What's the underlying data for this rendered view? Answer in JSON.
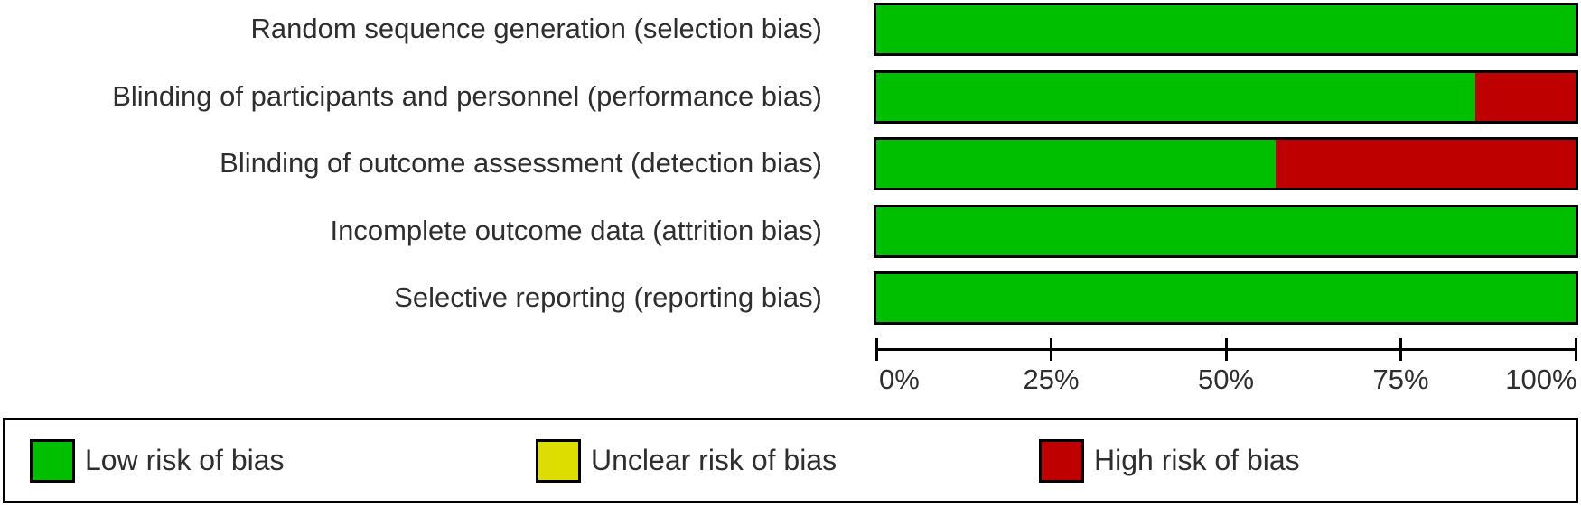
{
  "chart_data": {
    "type": "bar",
    "variant": "horizontal-stacked",
    "title": "",
    "categories": [
      "Random sequence generation (selection bias)",
      "Blinding of participants and personnel (performance bias)",
      "Blinding of outcome assessment (detection bias)",
      "Incomplete outcome data (attrition bias)",
      "Selective reporting (reporting bias)"
    ],
    "series": [
      {
        "key": "low",
        "name": "Low risk of bias",
        "color": "#00BE00",
        "values": [
          100,
          85.7,
          57.1,
          100,
          100
        ]
      },
      {
        "key": "unclear",
        "name": "Unclear risk of bias",
        "color": "#DDDD00",
        "values": [
          0,
          0,
          0,
          0,
          0
        ]
      },
      {
        "key": "high",
        "name": "High risk of bias",
        "color": "#BE0000",
        "values": [
          0,
          14.3,
          42.9,
          0,
          0
        ]
      }
    ],
    "xlabel": "",
    "ylabel": "",
    "xlim": [
      0,
      100
    ],
    "x_ticks": [
      "0%",
      "25%",
      "50%",
      "75%",
      "100%"
    ],
    "grid": false,
    "legend_position": "bottom"
  },
  "colors": {
    "background": "#ffffff",
    "bar_border": "#000000",
    "axis": "#000000",
    "text": "#2e2e2e"
  }
}
